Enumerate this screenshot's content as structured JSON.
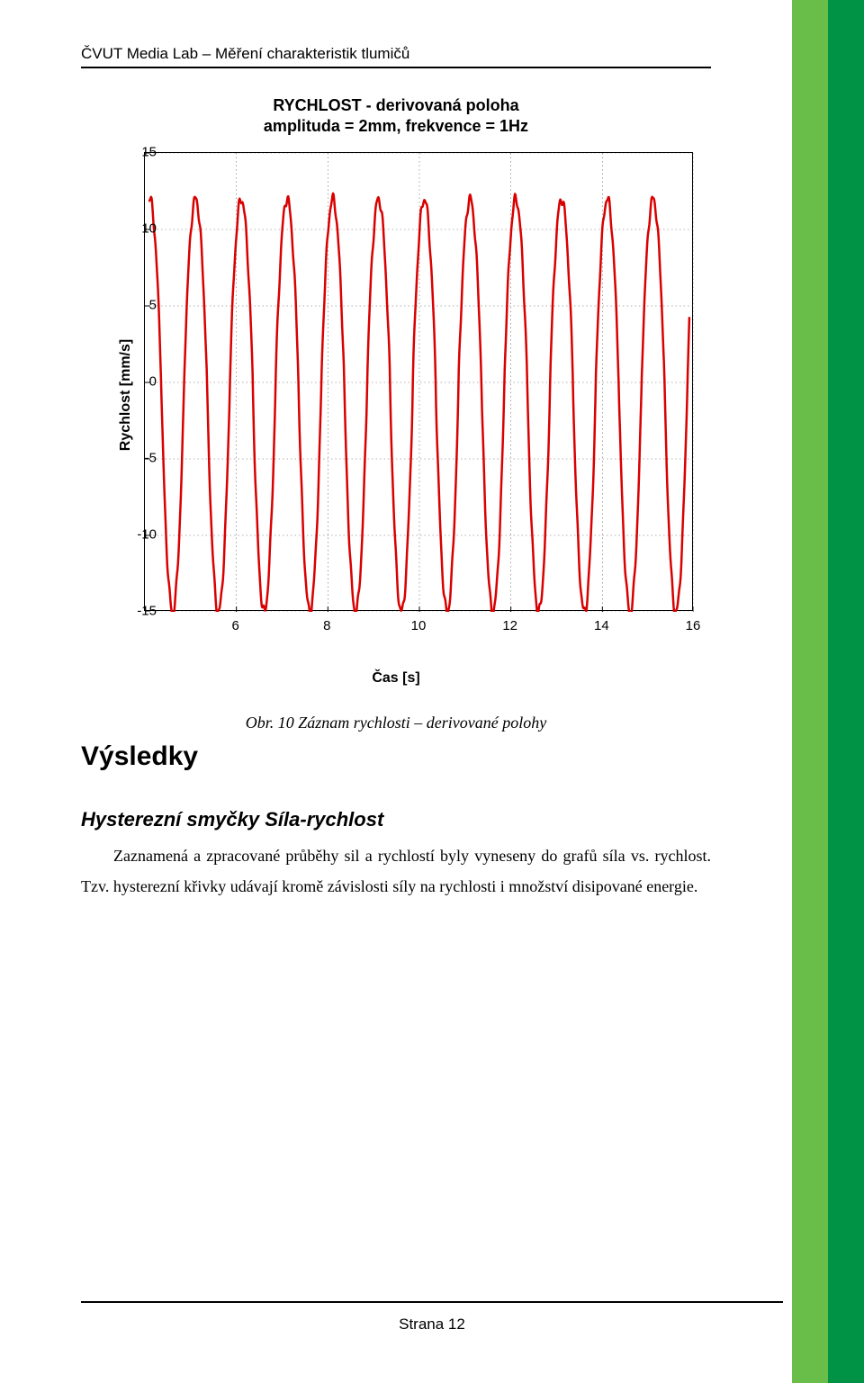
{
  "header": "ČVUT Media Lab – Měření charakteristik tlumičů",
  "chart": {
    "type": "line",
    "title_line1": "RYCHLOST - derivovaná poloha",
    "title_line2": "amplituda = 2mm, frekvence = 1Hz",
    "title_fontsize": 18,
    "ylabel": "Rychlost [mm/s]",
    "xlabel": "Čas [s]",
    "label_fontsize": 16,
    "xlim": [
      4,
      16
    ],
    "ylim": [
      -15,
      15
    ],
    "xticks": [
      6,
      8,
      10,
      12,
      14,
      16
    ],
    "yticks": [
      -15,
      -10,
      -5,
      0,
      5,
      10,
      15
    ],
    "grid_color": "#666666",
    "grid_linestyle": "dotted",
    "line_color": "#d90000",
    "line_width": 2.5,
    "background_color": "#ffffff",
    "amplitude_pos": 12,
    "amplitude_neg": -15,
    "frequency_hz": 1.0,
    "x_start": 4.1,
    "x_end": 15.9,
    "samples": 1000
  },
  "caption": "Obr. 10 Záznam rychlosti – derivované polohy",
  "section_heading": "Výsledky",
  "subheading": "Hysterezní smyčky Síla-rychlost",
  "body": "Zaznamená a zpracované průběhy sil a rychlostí byly vyneseny do grafů síla vs. rychlost. Tzv. hysterezní křivky udávají kromě závislosti síly na rychlosti i množství disipované energie.",
  "footer": "Strana 12",
  "sidebar": {
    "light_color": "#69be4a",
    "dark_color": "#009245"
  }
}
